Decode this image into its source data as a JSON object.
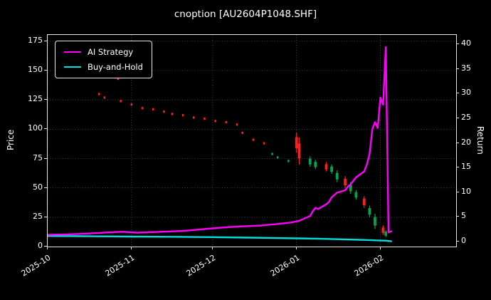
{
  "chart_data": {
    "type": "line",
    "title": "cnoption [AU2604P1048.SHF]",
    "xlabel": "",
    "ylabel_left": "Price",
    "ylabel_right": "Return",
    "x_ticks": [
      "2025-10",
      "2025-11",
      "2025-12",
      "2026-01",
      "2026-02"
    ],
    "x_domain": [
      "2025-10-01",
      "2026-03-01"
    ],
    "left_ylim": [
      0,
      180.4
    ],
    "left_ticks": [
      0,
      25,
      50,
      75,
      100,
      125,
      150,
      175
    ],
    "right_ylim": [
      -1,
      41.9
    ],
    "right_ticks": [
      0,
      5,
      10,
      15,
      20,
      25,
      30,
      35,
      40
    ],
    "grid": true,
    "legend_position": "upper-left",
    "colors": {
      "ai": "#ff00ff",
      "bh": "#00dddd",
      "up": "#00a550",
      "down": "#ff1f1f",
      "grid": "#525252",
      "text": "#ffffff",
      "bg": "#000000"
    },
    "series": [
      {
        "name": "AI Strategy",
        "color_key": "ai",
        "axis": "left",
        "points": [
          [
            "2025-10-01",
            10
          ],
          [
            "2025-10-06",
            10.2
          ],
          [
            "2025-10-10",
            10.5
          ],
          [
            "2025-10-15",
            11
          ],
          [
            "2025-10-20",
            11.6
          ],
          [
            "2025-10-24",
            12.2
          ],
          [
            "2025-10-29",
            12.6
          ],
          [
            "2025-11-03",
            11.8
          ],
          [
            "2025-11-07",
            12.2
          ],
          [
            "2025-11-12",
            12.6
          ],
          [
            "2025-11-17",
            13
          ],
          [
            "2025-11-21",
            13.5
          ],
          [
            "2025-11-26",
            14.5
          ],
          [
            "2025-12-01",
            15.5
          ],
          [
            "2025-12-05",
            16.3
          ],
          [
            "2025-12-10",
            17
          ],
          [
            "2025-12-15",
            17.5
          ],
          [
            "2025-12-19",
            18
          ],
          [
            "2025-12-24",
            19
          ],
          [
            "2025-12-30",
            20.5
          ],
          [
            "2026-01-02",
            22
          ],
          [
            "2026-01-06",
            26
          ],
          [
            "2026-01-07",
            30
          ],
          [
            "2026-01-08",
            33
          ],
          [
            "2026-01-09",
            32
          ],
          [
            "2026-01-12",
            36
          ],
          [
            "2026-01-13",
            38
          ],
          [
            "2026-01-14",
            42
          ],
          [
            "2026-01-15",
            44
          ],
          [
            "2026-01-16",
            46
          ],
          [
            "2026-01-19",
            48
          ],
          [
            "2026-01-20",
            51
          ],
          [
            "2026-01-21",
            53
          ],
          [
            "2026-01-22",
            56
          ],
          [
            "2026-01-23",
            59
          ],
          [
            "2026-01-26",
            64
          ],
          [
            "2026-01-27",
            70
          ],
          [
            "2026-01-28",
            79
          ],
          [
            "2026-01-29",
            100
          ],
          [
            "2026-01-30",
            106
          ],
          [
            "2026-01-31",
            101
          ],
          [
            "2026-02-01",
            127
          ],
          [
            "2026-02-02",
            121
          ],
          [
            "2026-02-03",
            170
          ],
          [
            "2026-02-04",
            12
          ],
          [
            "2026-02-05",
            13
          ]
        ]
      },
      {
        "name": "Buy-and-Hold",
        "color_key": "bh",
        "axis": "left",
        "points": [
          [
            "2025-10-01",
            9
          ],
          [
            "2025-10-15",
            8.8
          ],
          [
            "2025-11-01",
            8.5
          ],
          [
            "2025-11-15",
            8.3
          ],
          [
            "2025-12-01",
            8
          ],
          [
            "2025-12-15",
            7.6
          ],
          [
            "2026-01-01",
            7
          ],
          [
            "2026-01-10",
            6.6
          ],
          [
            "2026-01-20",
            6
          ],
          [
            "2026-01-28",
            5.5
          ],
          [
            "2026-02-03",
            5
          ],
          [
            "2026-02-05",
            4.5
          ]
        ]
      }
    ],
    "candles": [
      [
        "2025-10-20",
        129,
        131,
        "down"
      ],
      [
        "2025-10-22",
        126,
        128,
        "down"
      ],
      [
        "2025-10-27",
        142,
        144,
        "down"
      ],
      [
        "2025-10-28",
        123,
        125,
        "down"
      ],
      [
        "2025-11-01",
        120,
        122,
        "down"
      ],
      [
        "2025-11-05",
        117,
        119,
        "down"
      ],
      [
        "2025-11-09",
        116,
        118,
        "down"
      ],
      [
        "2025-11-13",
        114,
        116,
        "down"
      ],
      [
        "2025-11-16",
        112,
        114,
        "down"
      ],
      [
        "2025-11-20",
        111,
        113,
        "down"
      ],
      [
        "2025-11-24",
        109,
        111,
        "down"
      ],
      [
        "2025-11-28",
        108,
        110,
        "down"
      ],
      [
        "2025-12-02",
        106,
        108,
        "down"
      ],
      [
        "2025-12-06",
        105,
        107,
        "down"
      ],
      [
        "2025-12-10",
        103,
        105,
        "down"
      ],
      [
        "2025-12-12",
        96,
        98,
        "down"
      ],
      [
        "2025-12-16",
        90,
        92,
        "down"
      ],
      [
        "2025-12-20",
        87,
        89,
        "down"
      ],
      [
        "2025-12-23",
        78,
        80,
        "up"
      ],
      [
        "2025-12-25",
        75,
        77,
        "up"
      ],
      [
        "2025-12-29",
        72,
        74,
        "up"
      ],
      [
        "2026-01-01",
        80,
        97,
        "down"
      ],
      [
        "2026-01-02",
        70,
        93,
        "down"
      ],
      [
        "2026-01-06",
        68,
        77,
        "up"
      ],
      [
        "2026-01-08",
        66,
        74,
        "up"
      ],
      [
        "2026-01-12",
        64,
        72,
        "down"
      ],
      [
        "2026-01-14",
        62,
        70,
        "up"
      ],
      [
        "2026-01-16",
        55,
        65,
        "up"
      ],
      [
        "2026-01-19",
        50,
        60,
        "down"
      ],
      [
        "2026-01-21",
        45,
        55,
        "up"
      ],
      [
        "2026-01-23",
        40,
        48,
        "up"
      ],
      [
        "2026-01-26",
        33,
        43,
        "down"
      ],
      [
        "2026-01-28",
        25,
        35,
        "up"
      ],
      [
        "2026-01-30",
        15,
        28,
        "up"
      ],
      [
        "2026-02-02",
        10,
        18,
        "down"
      ],
      [
        "2026-02-03",
        8,
        14,
        "up"
      ]
    ]
  }
}
